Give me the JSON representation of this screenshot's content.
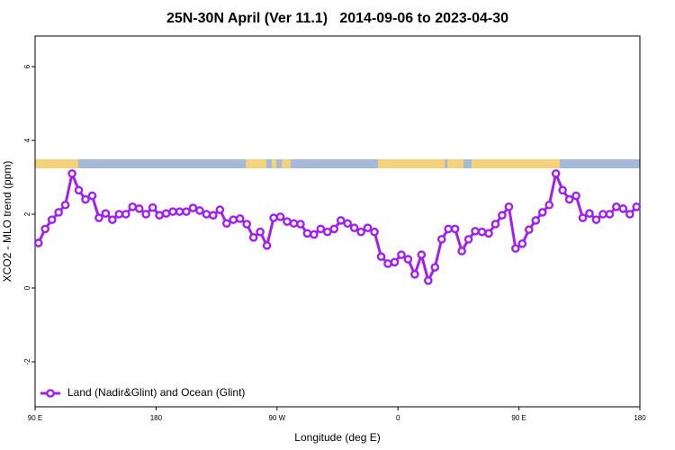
{
  "chart_data": {
    "type": "line",
    "title": "25N-30N April (Ver 11.1)   2014-09-06 to 2023-04-30",
    "x_label": "Longitude (deg E)",
    "y_label": "XCO2 - MLO trend (ppm)",
    "xlim": [
      90,
      540
    ],
    "xticks": [
      {
        "value": 90,
        "label": "90 E"
      },
      {
        "value": 180,
        "label": "180"
      },
      {
        "value": 270,
        "label": "90 W"
      },
      {
        "value": 360,
        "label": "0"
      },
      {
        "value": 450,
        "label": "90 E"
      },
      {
        "value": 540,
        "label": "180"
      }
    ],
    "ylim": [
      -3.22,
      6.83
    ],
    "yticks": [
      -2,
      0,
      2,
      4,
      6
    ],
    "grid": false,
    "legend": "bottom-left",
    "x": [
      92.5,
      97.5,
      102.5,
      107.5,
      112.5,
      117.5,
      122.5,
      127.5,
      132.5,
      137.5,
      142.5,
      147.5,
      152.5,
      157.5,
      162.5,
      167.5,
      172.5,
      177.5,
      182.5,
      187.5,
      192.5,
      197.5,
      202.5,
      207.5,
      212.5,
      217.5,
      222.5,
      227.5,
      232.5,
      237.5,
      242.5,
      247.5,
      252.5,
      257.5,
      262.5,
      267.5,
      272.5,
      277.5,
      282.5,
      287.5,
      292.5,
      297.5,
      302.5,
      307.5,
      312.5,
      317.5,
      322.5,
      327.5,
      332.5,
      337.5,
      342.5,
      347.5,
      352.5,
      357.5,
      362.5,
      367.5,
      372.5,
      377.5,
      382.5,
      387.5,
      392.5,
      397.5,
      402.5,
      407.5,
      412.5,
      417.5,
      422.5,
      427.5,
      432.5,
      437.5,
      442.5,
      447.5,
      452.5,
      457.5,
      462.5,
      467.5,
      472.5,
      477.5,
      482.5,
      487.5,
      492.5,
      497.5,
      502.5,
      507.5,
      512.5,
      517.5,
      522.5,
      527.5,
      532.5,
      537.5
    ],
    "series": [
      {
        "name": "Land (Nadir&Glint) and Ocean (Glint)",
        "color": "#a020f0",
        "values": [
          1.22,
          1.6,
          1.85,
          2.05,
          2.25,
          3.1,
          2.65,
          2.4,
          2.5,
          1.9,
          2.02,
          1.85,
          2.0,
          2.0,
          2.2,
          2.15,
          2.0,
          2.18,
          1.97,
          2.02,
          2.07,
          2.07,
          2.07,
          2.17,
          2.1,
          2.0,
          1.97,
          2.12,
          1.75,
          1.85,
          1.88,
          1.73,
          1.37,
          1.52,
          1.15,
          1.9,
          1.93,
          1.8,
          1.75,
          1.73,
          1.48,
          1.45,
          1.6,
          1.52,
          1.6,
          1.83,
          1.75,
          1.63,
          1.52,
          1.63,
          1.52,
          0.85,
          0.66,
          0.7,
          0.9,
          0.78,
          0.37,
          0.9,
          0.2,
          0.56,
          1.32,
          1.6,
          1.6,
          1.0,
          1.32,
          1.54,
          1.52,
          1.48,
          1.73,
          1.97,
          2.2,
          1.07,
          1.2,
          1.58,
          1.83,
          2.05,
          2.25,
          3.1,
          2.65,
          2.4,
          2.5,
          1.9,
          2.02,
          1.85,
          2.0,
          2.0,
          2.2,
          2.15,
          2.0,
          2.2
        ]
      }
    ]
  }
}
